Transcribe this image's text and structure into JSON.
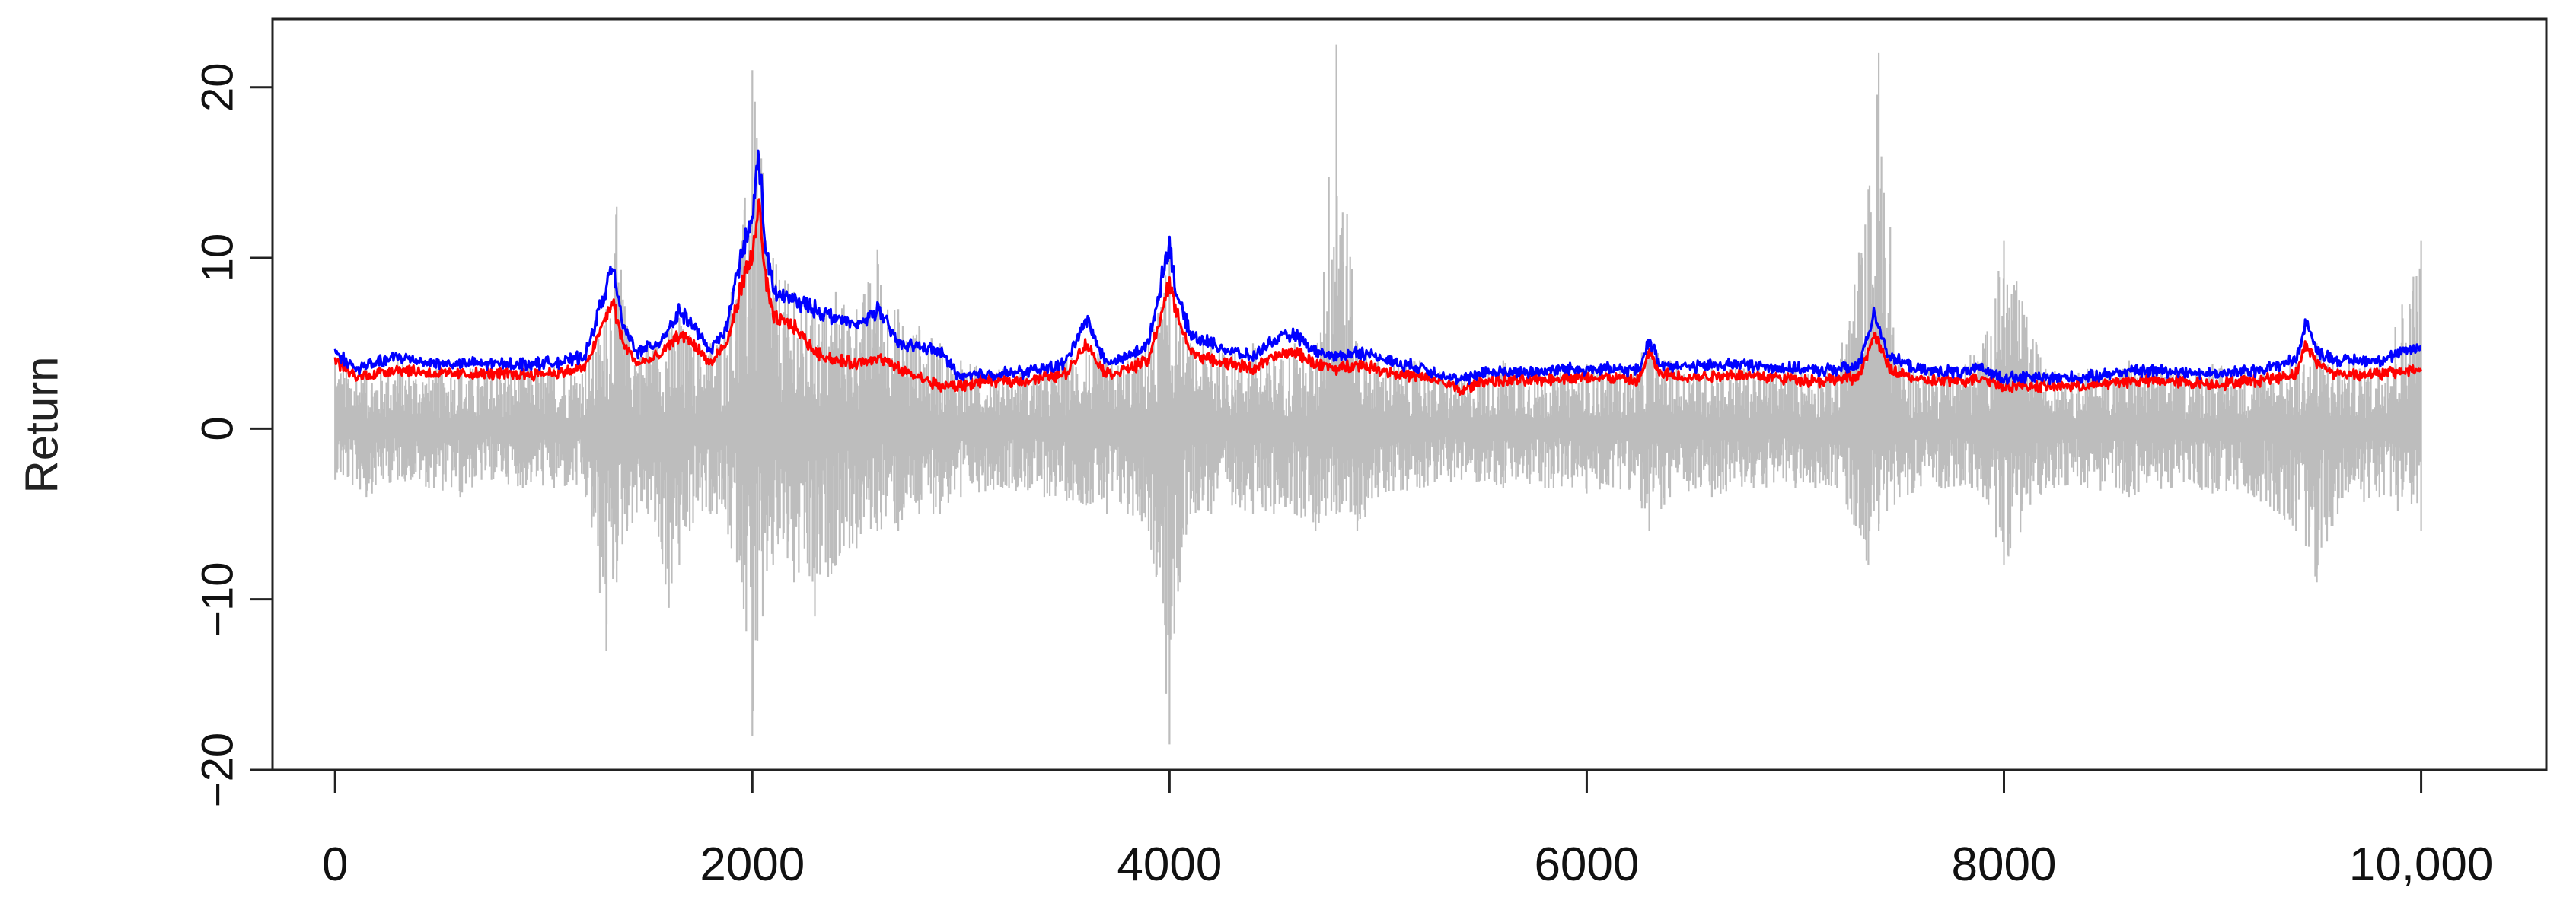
{
  "chart_data": {
    "type": "line",
    "title": "",
    "xlabel": "",
    "ylabel": "Return",
    "xlim": [
      -300,
      10600
    ],
    "ylim": [
      -20,
      24
    ],
    "xticks": [
      0,
      2000,
      4000,
      6000,
      8000,
      10000
    ],
    "xtick_labels": [
      "0",
      "2000",
      "4000",
      "6000",
      "8000",
      "10,000"
    ],
    "yticks": [
      -20,
      -10,
      0,
      10,
      20
    ],
    "ytick_labels": [
      "−20",
      "−10",
      "0",
      "10",
      "20"
    ],
    "grid": false,
    "legend": "none",
    "n_observations": 10000,
    "series": [
      {
        "kind": "returns",
        "color": "#bdbdbd",
        "description": "daily return spikes (grey vertical bars)",
        "x": [
          0,
          150,
          300,
          450,
          600,
          750,
          900,
          1050,
          1200,
          1300,
          1350,
          1400,
          1500,
          1600,
          1650,
          1700,
          1800,
          1900,
          1950,
          2000,
          2050,
          2100,
          2200,
          2300,
          2400,
          2500,
          2600,
          2700,
          2800,
          2900,
          3000,
          3200,
          3400,
          3600,
          3700,
          3800,
          3900,
          4000,
          4050,
          4100,
          4200,
          4300,
          4400,
          4500,
          4600,
          4700,
          4800,
          4900,
          5000,
          5200,
          5400,
          5600,
          5800,
          6000,
          6200,
          6300,
          6400,
          6600,
          6800,
          7000,
          7200,
          7350,
          7400,
          7500,
          7700,
          7900,
          8000,
          8200,
          8400,
          8600,
          8800,
          9000,
          9200,
          9400,
          9500,
          9600,
          9800,
          10000
        ],
        "upper": [
          4,
          3.5,
          4,
          3.5,
          3.8,
          3.5,
          3.8,
          3.6,
          4,
          7,
          13,
          6,
          5,
          6,
          6.5,
          5.5,
          5,
          8,
          11,
          21,
          15,
          10,
          8,
          7,
          8,
          7,
          10.5,
          7,
          6,
          5,
          4,
          3.5,
          3.5,
          5,
          4,
          4,
          5,
          10,
          6,
          5,
          5,
          4.5,
          5,
          4,
          5,
          4,
          22.5,
          5,
          4,
          4,
          3,
          4,
          3.5,
          3.8,
          3.5,
          5,
          4,
          4,
          3.5,
          3.8,
          3.5,
          14,
          22,
          4,
          3.5,
          5,
          11,
          3.5,
          3.5,
          4,
          3.5,
          3.8,
          3.5,
          4,
          5,
          4,
          4,
          11
        ],
        "lower": [
          -3,
          -4,
          -3,
          -3.5,
          -4,
          -3,
          -3.5,
          -3.5,
          -4,
          -13,
          -9,
          -6,
          -5,
          -10.5,
          -8,
          -6,
          -5,
          -7,
          -9,
          -18,
          -11,
          -8,
          -9,
          -11,
          -8,
          -7,
          -6,
          -6,
          -5,
          -5,
          -4,
          -3.5,
          -4,
          -4.5,
          -5,
          -5,
          -6,
          -18.5,
          -9,
          -5,
          -5,
          -4.5,
          -5,
          -5,
          -5,
          -6,
          -5,
          -6,
          -4,
          -3.5,
          -3,
          -3.5,
          -3.5,
          -3.8,
          -3.5,
          -6,
          -4,
          -4,
          -3.5,
          -3.5,
          -3.5,
          -8,
          -6,
          -4,
          -3.5,
          -4,
          -8,
          -3.5,
          -3.5,
          -4,
          -3.5,
          -3.8,
          -4,
          -6,
          -9,
          -5,
          -4,
          -6
        ]
      },
      {
        "kind": "line",
        "color": "#ff0000",
        "description": "lower risk estimate (red)",
        "x": [
          0,
          100,
          300,
          500,
          700,
          900,
          1100,
          1200,
          1280,
          1330,
          1380,
          1450,
          1550,
          1650,
          1700,
          1800,
          1880,
          1950,
          2000,
          2030,
          2060,
          2100,
          2200,
          2300,
          2400,
          2500,
          2600,
          2700,
          2800,
          2900,
          3000,
          3100,
          3300,
          3500,
          3600,
          3650,
          3700,
          3800,
          3900,
          4000,
          4030,
          4100,
          4200,
          4300,
          4400,
          4500,
          4600,
          4700,
          4800,
          4900,
          5000,
          5100,
          5200,
          5300,
          5400,
          5500,
          5700,
          5900,
          6100,
          6250,
          6300,
          6350,
          6500,
          6700,
          6900,
          7100,
          7300,
          7380,
          7450,
          7600,
          7800,
          7900,
          8000,
          8200,
          8400,
          8600,
          8800,
          9000,
          9200,
          9400,
          9450,
          9500,
          9600,
          9800,
          10000
        ],
        "y": [
          4,
          3,
          3.5,
          3.2,
          3.2,
          3.2,
          3.3,
          3.6,
          6,
          7.5,
          5,
          3.8,
          4.2,
          5.5,
          5.2,
          3.8,
          5,
          8.5,
          10,
          13.5,
          9,
          6.5,
          6,
          4.5,
          4,
          3.8,
          4.2,
          3.5,
          3,
          2.5,
          2.5,
          2.8,
          2.8,
          3.2,
          5,
          4,
          3.2,
          3.5,
          4,
          8.5,
          7,
          4.5,
          4,
          3.8,
          3.5,
          4.2,
          4.5,
          3.8,
          3.5,
          3.8,
          3.5,
          3.2,
          3,
          2.8,
          2.2,
          2.8,
          2.8,
          3,
          3,
          2.8,
          4.5,
          3.2,
          3,
          3.2,
          3,
          2.8,
          3,
          5.5,
          3.5,
          2.8,
          2.8,
          3,
          2.5,
          2.5,
          2.5,
          2.8,
          2.8,
          2.6,
          2.8,
          3.2,
          5,
          3.8,
          3.2,
          3.2,
          3.5
        ]
      },
      {
        "kind": "line",
        "color": "#0000ff",
        "description": "upper risk estimate (blue)",
        "x": [
          0,
          100,
          300,
          500,
          700,
          900,
          1100,
          1200,
          1280,
          1330,
          1380,
          1450,
          1550,
          1650,
          1700,
          1800,
          1880,
          1950,
          2000,
          2030,
          2060,
          2100,
          2200,
          2300,
          2400,
          2500,
          2600,
          2700,
          2800,
          2900,
          3000,
          3100,
          3300,
          3500,
          3600,
          3650,
          3700,
          3800,
          3900,
          4000,
          4030,
          4100,
          4200,
          4300,
          4400,
          4500,
          4600,
          4700,
          4800,
          4900,
          5000,
          5100,
          5200,
          5300,
          5400,
          5500,
          5700,
          5900,
          6100,
          6250,
          6300,
          6350,
          6500,
          6700,
          6900,
          7100,
          7300,
          7380,
          7450,
          7600,
          7800,
          7900,
          8000,
          8200,
          8400,
          8600,
          8800,
          9000,
          9200,
          9400,
          9450,
          9500,
          9600,
          9800,
          10000
        ],
        "y": [
          4.5,
          3.5,
          4.2,
          3.8,
          3.8,
          3.8,
          3.9,
          4.3,
          7.5,
          9.5,
          6,
          4.5,
          5,
          6.8,
          6.3,
          4.5,
          6,
          10.5,
          12,
          16.5,
          11,
          8,
          7.5,
          7,
          6.5,
          6,
          7,
          5,
          4.8,
          4.5,
          3,
          3.2,
          3.3,
          3.8,
          6.5,
          5,
          3.8,
          4.2,
          5,
          11,
          8,
          5.5,
          5,
          4.5,
          4.2,
          5.2,
          5.5,
          4.5,
          4.2,
          4.5,
          4.2,
          3.8,
          3.6,
          3.2,
          2.8,
          3.3,
          3.3,
          3.5,
          3.5,
          3.4,
          5.2,
          3.8,
          3.6,
          3.8,
          3.6,
          3.4,
          3.6,
          6.8,
          4.2,
          3.4,
          3.3,
          3.5,
          3.0,
          3.0,
          3.0,
          3.4,
          3.4,
          3.2,
          3.4,
          4,
          6.3,
          4.5,
          4,
          4,
          4.8
        ]
      }
    ]
  }
}
